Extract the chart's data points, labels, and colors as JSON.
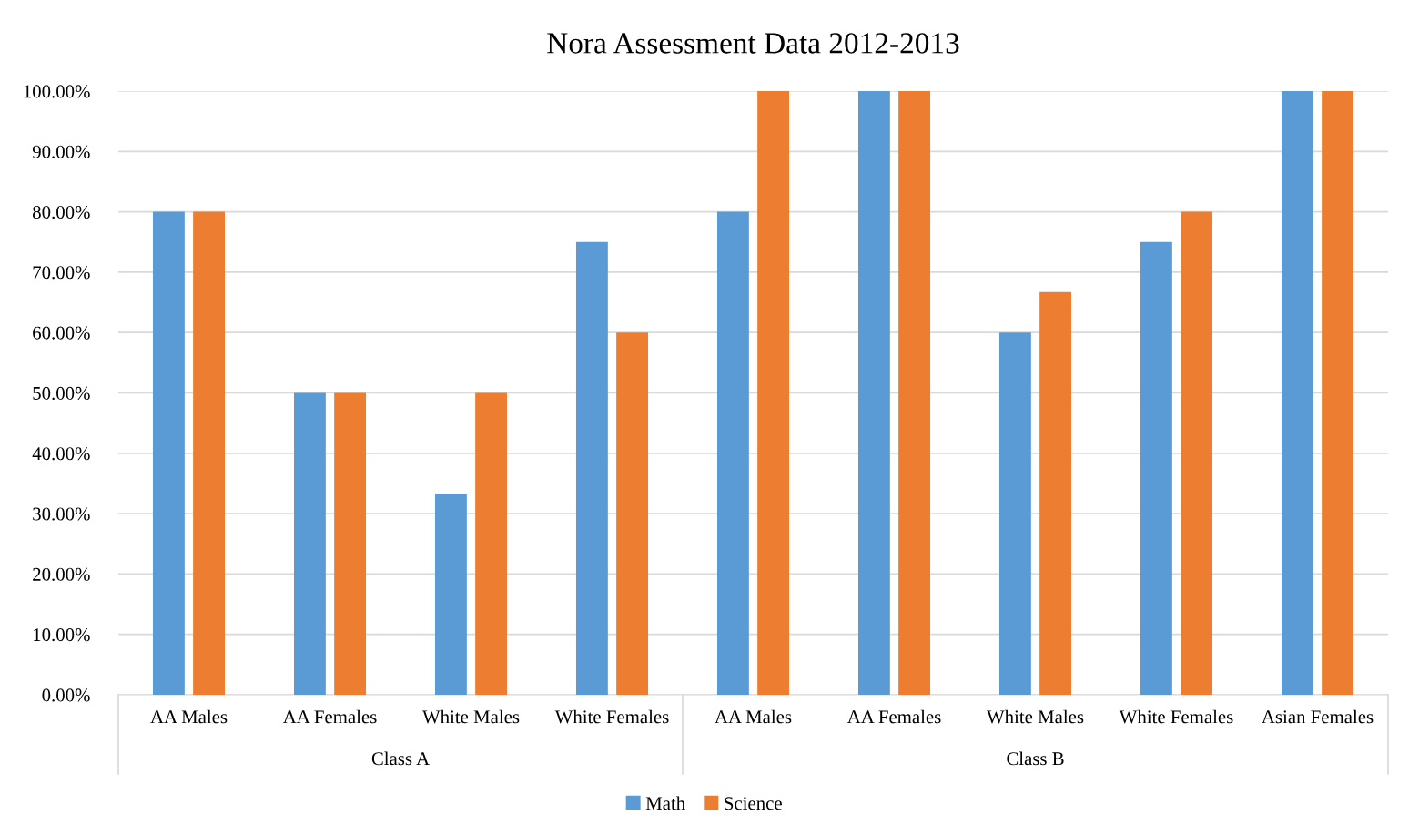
{
  "chart_data": {
    "type": "bar",
    "title": "Nora Assessment Data 2012-2013",
    "categories": [
      "AA Males",
      "AA Females",
      "White Males",
      "White Females",
      "AA Males",
      "AA Females",
      "White Males",
      "White Females",
      "Asian Females"
    ],
    "series": [
      {
        "name": "Math",
        "color": "#5b9bd5",
        "values": [
          80,
          50,
          33.3,
          75,
          80,
          100,
          60,
          75,
          100
        ]
      },
      {
        "name": "Science",
        "color": "#ed7d31",
        "values": [
          80,
          50,
          50,
          60,
          100,
          100,
          66.7,
          80,
          100
        ]
      }
    ],
    "annotations": [
      "Class A",
      "Class B"
    ],
    "ylim": [
      0,
      100
    ],
    "yticks": [
      {
        "value": 0,
        "label": "0.00%"
      },
      {
        "value": 10,
        "label": "10.00%"
      },
      {
        "value": 20,
        "label": "20.00%"
      },
      {
        "value": 30,
        "label": "30.00%"
      },
      {
        "value": 40,
        "label": "40.00%"
      },
      {
        "value": 50,
        "label": "50.00%"
      },
      {
        "value": 60,
        "label": "60.00%"
      },
      {
        "value": 70,
        "label": "70.00%"
      },
      {
        "value": 80,
        "label": "80.00%"
      },
      {
        "value": 90,
        "label": "90.00%"
      },
      {
        "value": 100,
        "label": "100.00%"
      }
    ],
    "grid": "y",
    "legend": "bottom"
  }
}
